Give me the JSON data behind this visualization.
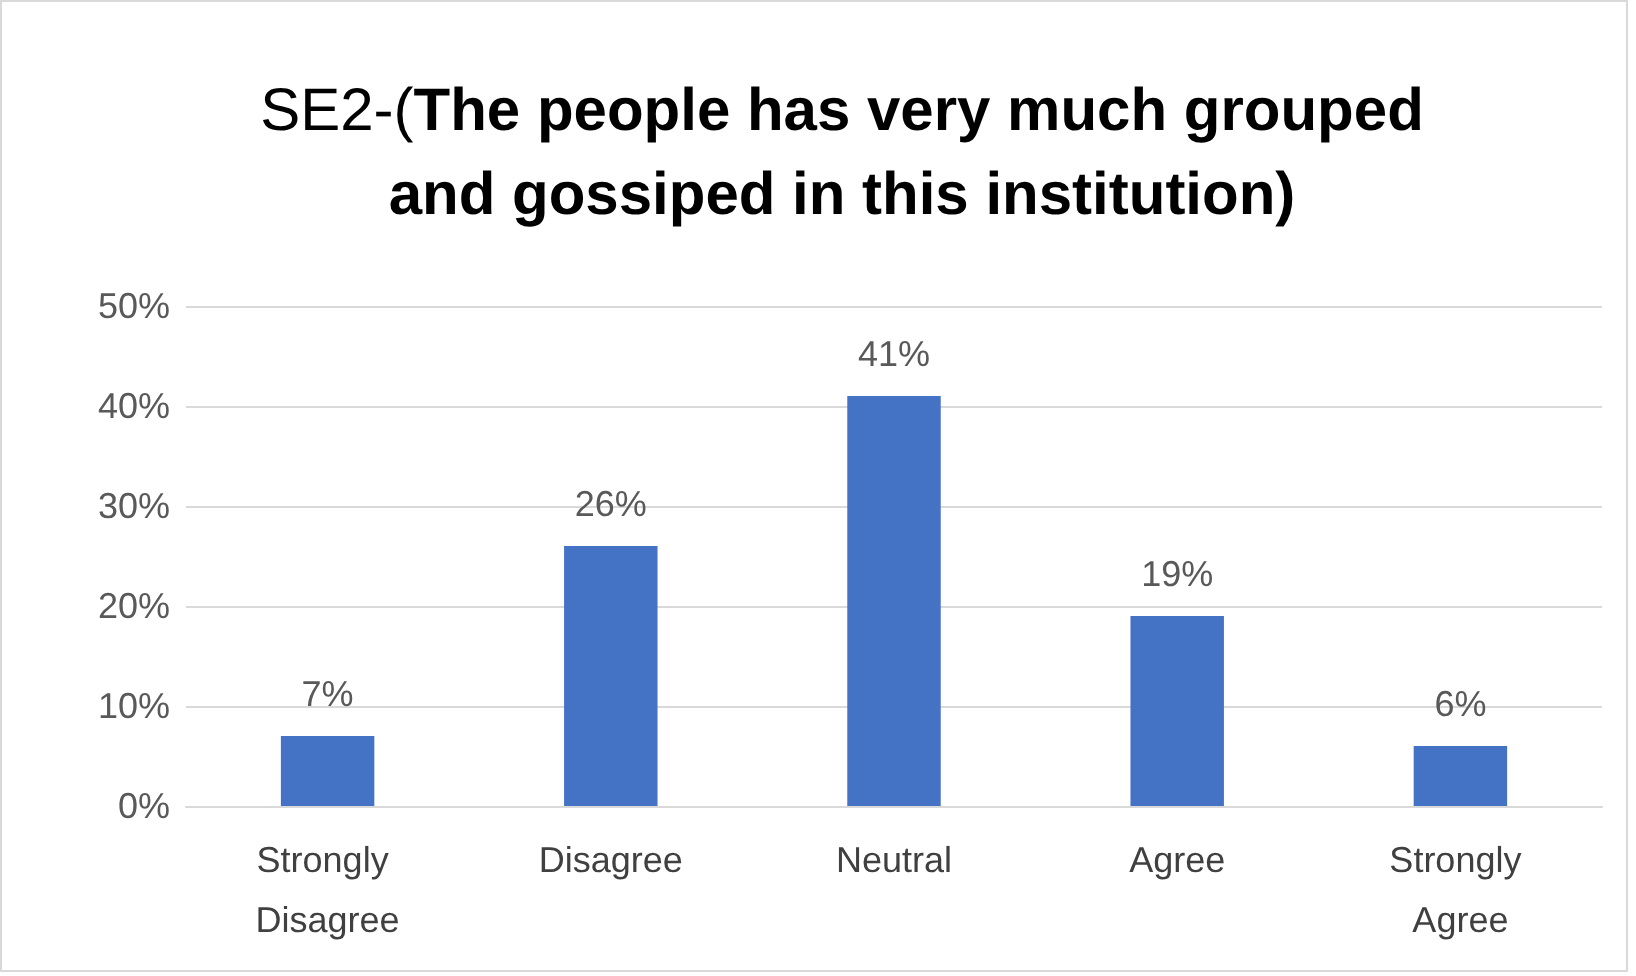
{
  "chart_data": {
    "type": "bar",
    "title": "SE2-(The people has very much grouped and gossiped in this institution)",
    "categories": [
      "Strongly Disagree",
      "Disagree",
      "Neutral",
      "Agree",
      "Strongly Agree"
    ],
    "values": [
      7,
      26,
      41,
      19,
      6
    ],
    "value_labels": [
      "7%",
      "26%",
      "41%",
      "19%",
      "6%"
    ],
    "color": "#4472c4",
    "ylim": [
      0,
      50
    ],
    "yticks": [
      {
        "value": 0,
        "label": "0%"
      },
      {
        "value": 10,
        "label": "10%"
      },
      {
        "value": 20,
        "label": "20%"
      },
      {
        "value": 30,
        "label": "30%"
      },
      {
        "value": 40,
        "label": "40%"
      },
      {
        "value": 50,
        "label": "50%"
      }
    ],
    "grid": true
  }
}
